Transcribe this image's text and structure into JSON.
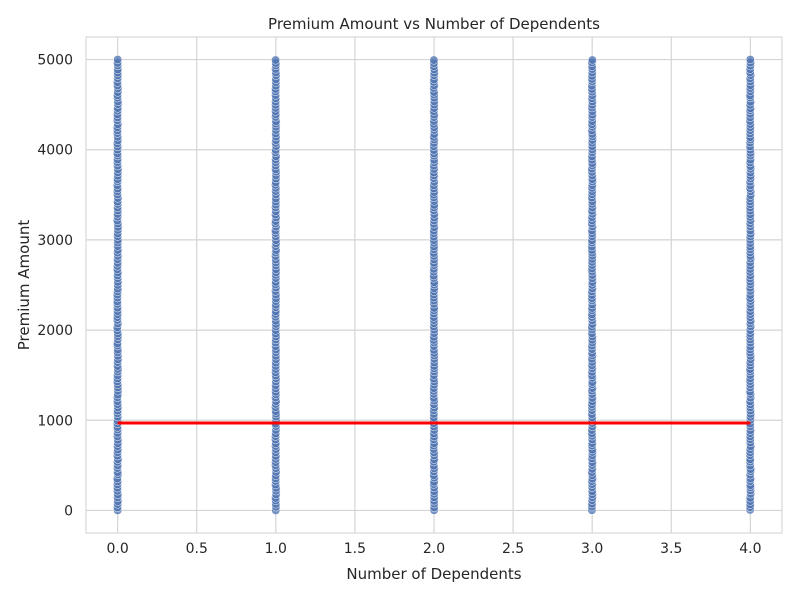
{
  "chart_data": {
    "type": "scatter",
    "title": "Premium Amount vs Number of Dependents",
    "xlabel": "Number of Dependents",
    "ylabel": "Premium Amount",
    "xlim": [
      -0.2,
      4.2
    ],
    "ylim": [
      -250,
      5250
    ],
    "x_ticks": [
      {
        "value": 0.0,
        "label": "0.0"
      },
      {
        "value": 0.5,
        "label": "0.5"
      },
      {
        "value": 1.0,
        "label": "1.0"
      },
      {
        "value": 1.5,
        "label": "1.5"
      },
      {
        "value": 2.0,
        "label": "2.0"
      },
      {
        "value": 2.5,
        "label": "2.5"
      },
      {
        "value": 3.0,
        "label": "3.0"
      },
      {
        "value": 3.5,
        "label": "3.5"
      },
      {
        "value": 4.0,
        "label": "4.0"
      }
    ],
    "y_ticks": [
      {
        "value": 0,
        "label": "0"
      },
      {
        "value": 1000,
        "label": "1000"
      },
      {
        "value": 2000,
        "label": "2000"
      },
      {
        "value": 3000,
        "label": "3000"
      },
      {
        "value": 4000,
        "label": "4000"
      },
      {
        "value": 5000,
        "label": "5000"
      }
    ],
    "grid": true,
    "series": [
      {
        "color": "#4c72b0",
        "x_values": [
          0,
          1,
          2,
          3,
          4
        ],
        "y_range": [
          0,
          5000
        ]
      },
      {
        "type": "line",
        "color": "#ff0000",
        "x": [
          0,
          4
        ],
        "y": [
          970,
          970
        ]
      }
    ]
  }
}
